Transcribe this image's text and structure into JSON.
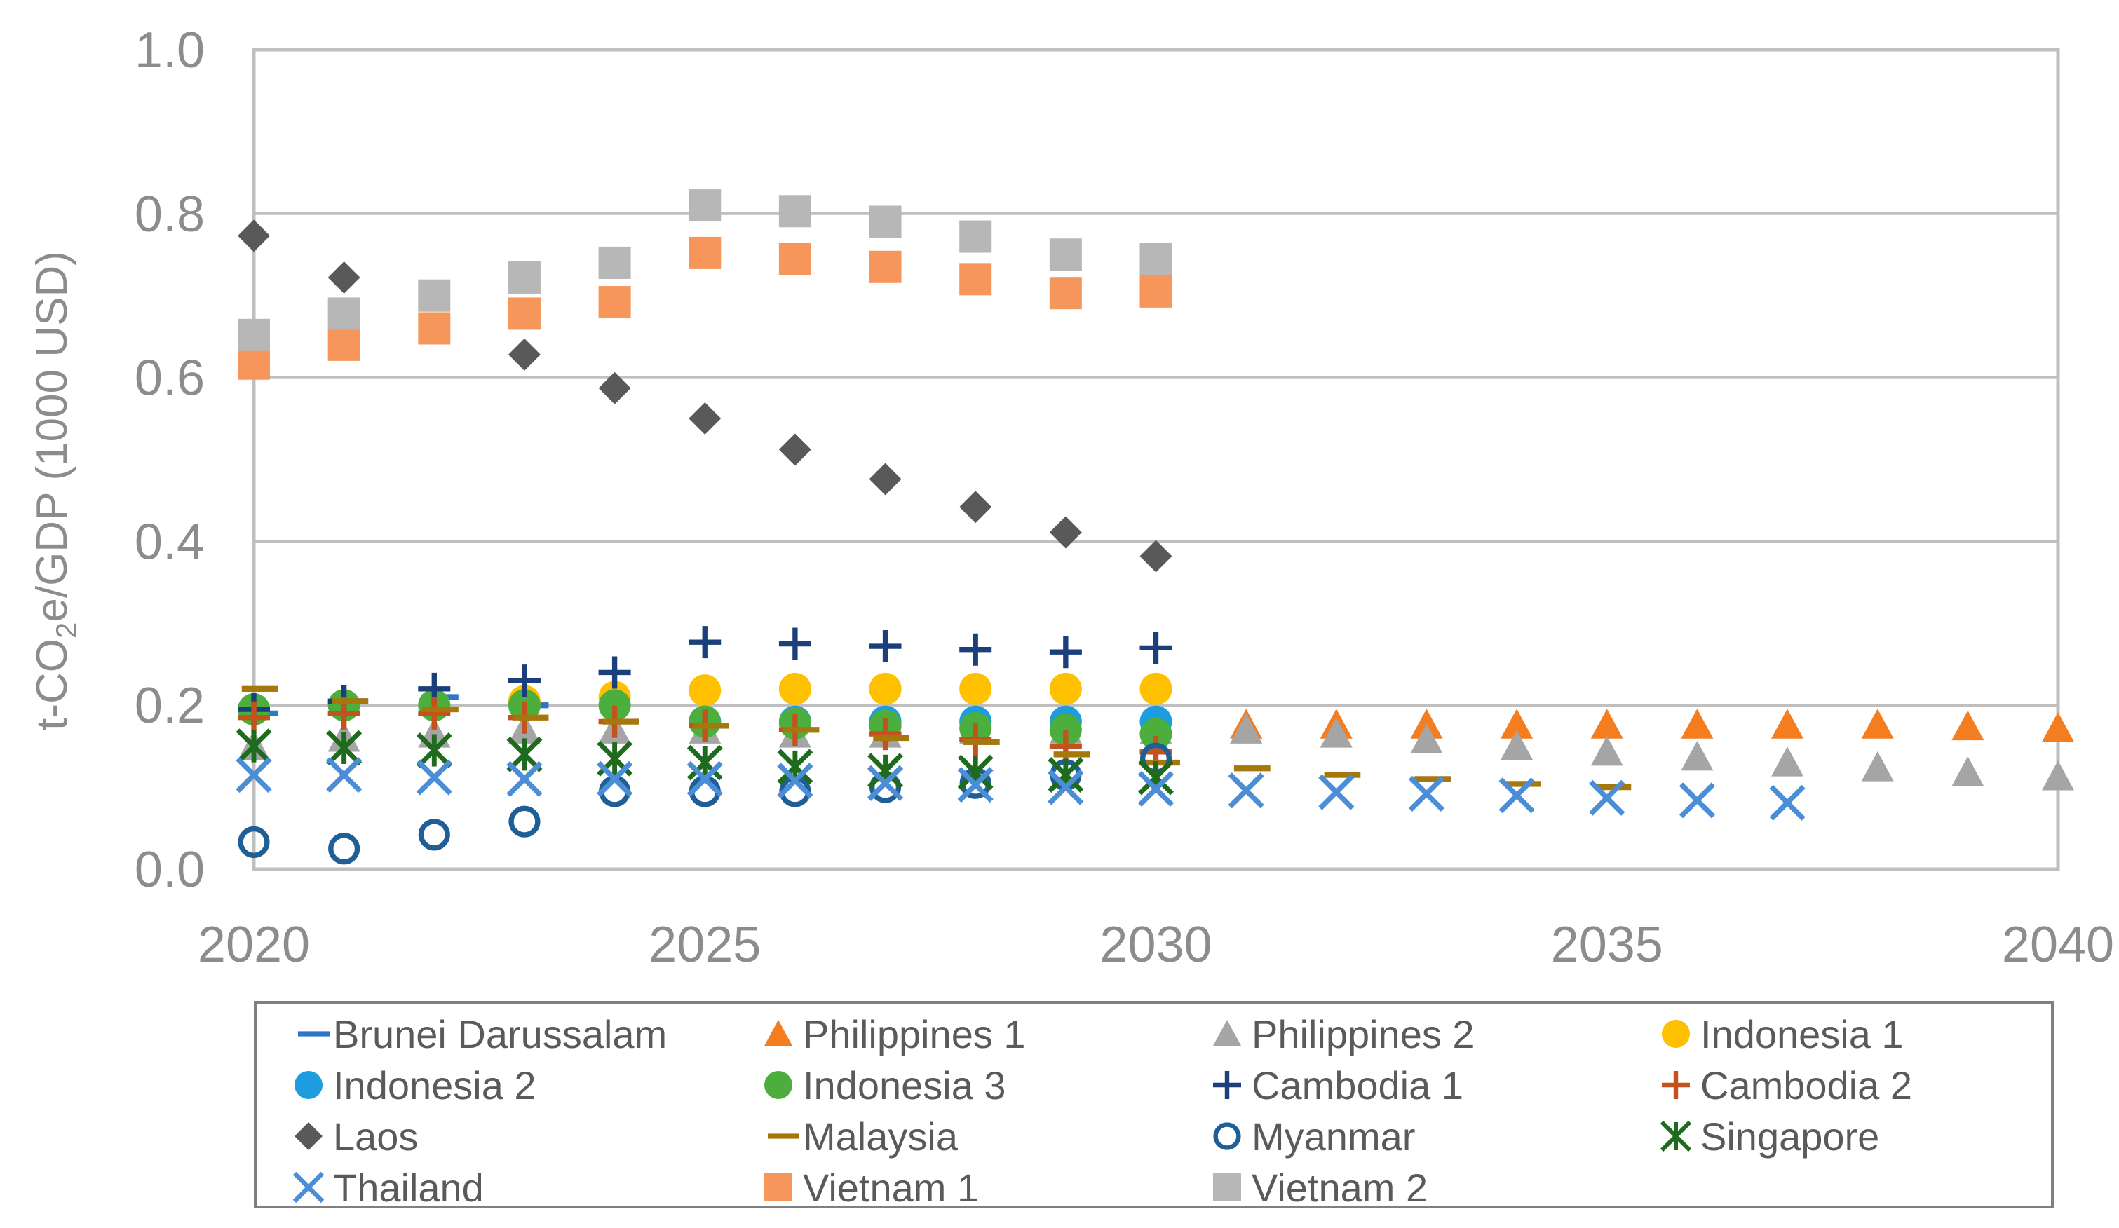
{
  "chart_data": {
    "type": "scatter",
    "ylabel": {
      "prefix": "t-CO",
      "sub": "2",
      "suffix": "e/GDP (1000 USD)"
    },
    "xlim": [
      2020,
      2040
    ],
    "ylim": [
      0.0,
      1.0
    ],
    "x_ticks": [
      "2020",
      "2025",
      "2030",
      "2035",
      "2040"
    ],
    "y_ticks": [
      "0.0",
      "0.2",
      "0.4",
      "0.6",
      "0.8",
      "1.0"
    ],
    "grid": true,
    "legend_position": "bottom",
    "series": [
      {
        "name": "Brunei Darussalam",
        "marker": "dash",
        "color": "#2f75c9",
        "points": [
          [
            2020,
            0.19
          ],
          [
            2021,
            0.205
          ],
          [
            2022,
            0.21
          ],
          [
            2023,
            0.2
          ]
        ]
      },
      {
        "name": "Philippines 1",
        "marker": "triangle",
        "color": "#f47d20",
        "points": [
          [
            2031,
            0.176
          ],
          [
            2032,
            0.176
          ],
          [
            2033,
            0.176
          ],
          [
            2034,
            0.176
          ],
          [
            2035,
            0.176
          ],
          [
            2036,
            0.176
          ],
          [
            2037,
            0.176
          ],
          [
            2038,
            0.176
          ],
          [
            2039,
            0.174
          ],
          [
            2040,
            0.172
          ]
        ]
      },
      {
        "name": "Philippines 2",
        "marker": "triangle",
        "color": "#a5a5a5",
        "points": [
          [
            2020,
            0.15
          ],
          [
            2021,
            0.16
          ],
          [
            2022,
            0.165
          ],
          [
            2023,
            0.17
          ],
          [
            2024,
            0.17
          ],
          [
            2025,
            0.17
          ],
          [
            2026,
            0.165
          ],
          [
            2027,
            0.165
          ],
          [
            2028,
            0.17
          ],
          [
            2029,
            0.17
          ],
          [
            2030,
            0.17
          ],
          [
            2031,
            0.17
          ],
          [
            2032,
            0.165
          ],
          [
            2033,
            0.158
          ],
          [
            2034,
            0.15
          ],
          [
            2035,
            0.143
          ],
          [
            2036,
            0.137
          ],
          [
            2037,
            0.13
          ],
          [
            2038,
            0.124
          ],
          [
            2039,
            0.118
          ],
          [
            2040,
            0.113
          ]
        ]
      },
      {
        "name": "Indonesia 1",
        "marker": "circle",
        "color": "#ffc000",
        "points": [
          [
            2023,
            0.205
          ],
          [
            2024,
            0.21
          ],
          [
            2025,
            0.218
          ],
          [
            2026,
            0.22
          ],
          [
            2027,
            0.22
          ],
          [
            2028,
            0.22
          ],
          [
            2029,
            0.22
          ],
          [
            2030,
            0.22
          ]
        ]
      },
      {
        "name": "Indonesia 2",
        "marker": "circle",
        "color": "#1e9ce0",
        "points": [
          [
            2025,
            0.18
          ],
          [
            2026,
            0.18
          ],
          [
            2027,
            0.18
          ],
          [
            2028,
            0.18
          ],
          [
            2029,
            0.18
          ],
          [
            2030,
            0.18
          ]
        ]
      },
      {
        "name": "Indonesia 3",
        "marker": "circle",
        "color": "#4caf3d",
        "points": [
          [
            2020,
            0.195
          ],
          [
            2021,
            0.2
          ],
          [
            2022,
            0.2
          ],
          [
            2023,
            0.2
          ],
          [
            2024,
            0.2
          ],
          [
            2025,
            0.18
          ],
          [
            2026,
            0.178
          ],
          [
            2027,
            0.175
          ],
          [
            2028,
            0.172
          ],
          [
            2029,
            0.17
          ],
          [
            2030,
            0.165
          ]
        ]
      },
      {
        "name": "Cambodia 1",
        "marker": "plus",
        "color": "#1a3f7a",
        "points": [
          [
            2020,
            0.195
          ],
          [
            2021,
            0.205
          ],
          [
            2022,
            0.22
          ],
          [
            2023,
            0.23
          ],
          [
            2024,
            0.24
          ],
          [
            2025,
            0.277
          ],
          [
            2026,
            0.275
          ],
          [
            2027,
            0.272
          ],
          [
            2028,
            0.268
          ],
          [
            2029,
            0.265
          ],
          [
            2030,
            0.27
          ]
        ]
      },
      {
        "name": "Cambodia 2",
        "marker": "plus",
        "color": "#c4521c",
        "points": [
          [
            2020,
            0.185
          ],
          [
            2021,
            0.19
          ],
          [
            2022,
            0.19
          ],
          [
            2023,
            0.185
          ],
          [
            2024,
            0.18
          ],
          [
            2025,
            0.175
          ],
          [
            2026,
            0.17
          ],
          [
            2027,
            0.165
          ],
          [
            2028,
            0.158
          ],
          [
            2029,
            0.15
          ],
          [
            2030,
            0.143
          ]
        ]
      },
      {
        "name": "Laos",
        "marker": "diamond",
        "color": "#595959",
        "points": [
          [
            2020,
            0.773
          ],
          [
            2021,
            0.722
          ],
          [
            2023,
            0.628
          ],
          [
            2024,
            0.587
          ],
          [
            2025,
            0.55
          ],
          [
            2026,
            0.512
          ],
          [
            2027,
            0.476
          ],
          [
            2028,
            0.442
          ],
          [
            2029,
            0.411
          ],
          [
            2030,
            0.382
          ]
        ]
      },
      {
        "name": "Malaysia",
        "marker": "dash",
        "color": "#a5770d",
        "points": [
          [
            2020,
            0.22
          ],
          [
            2021,
            0.205
          ],
          [
            2022,
            0.195
          ],
          [
            2023,
            0.185
          ],
          [
            2024,
            0.18
          ],
          [
            2025,
            0.175
          ],
          [
            2026,
            0.17
          ],
          [
            2027,
            0.16
          ],
          [
            2028,
            0.155
          ],
          [
            2029,
            0.14
          ],
          [
            2030,
            0.13
          ],
          [
            2031,
            0.123
          ],
          [
            2032,
            0.115
          ],
          [
            2033,
            0.11
          ],
          [
            2034,
            0.104
          ],
          [
            2035,
            0.1
          ]
        ]
      },
      {
        "name": "Myanmar",
        "marker": "open-circle",
        "color": "#1f5f96",
        "points": [
          [
            2020,
            0.033
          ],
          [
            2021,
            0.025
          ],
          [
            2022,
            0.042
          ],
          [
            2023,
            0.058
          ],
          [
            2024,
            0.095
          ],
          [
            2025,
            0.095
          ],
          [
            2026,
            0.095
          ],
          [
            2027,
            0.1
          ],
          [
            2028,
            0.105
          ],
          [
            2029,
            0.115
          ],
          [
            2030,
            0.135
          ]
        ]
      },
      {
        "name": "Singapore",
        "marker": "star",
        "color": "#1e6b1e",
        "points": [
          [
            2020,
            0.15
          ],
          [
            2021,
            0.148
          ],
          [
            2022,
            0.145
          ],
          [
            2023,
            0.14
          ],
          [
            2024,
            0.135
          ],
          [
            2025,
            0.13
          ],
          [
            2026,
            0.125
          ],
          [
            2027,
            0.12
          ],
          [
            2028,
            0.118
          ],
          [
            2029,
            0.115
          ],
          [
            2030,
            0.112
          ]
        ]
      },
      {
        "name": "Thailand",
        "marker": "x",
        "color": "#4b8ed6",
        "points": [
          [
            2020,
            0.115
          ],
          [
            2021,
            0.115
          ],
          [
            2022,
            0.112
          ],
          [
            2023,
            0.11
          ],
          [
            2024,
            0.11
          ],
          [
            2025,
            0.11
          ],
          [
            2026,
            0.108
          ],
          [
            2027,
            0.105
          ],
          [
            2028,
            0.103
          ],
          [
            2029,
            0.1
          ],
          [
            2030,
            0.098
          ],
          [
            2031,
            0.096
          ],
          [
            2032,
            0.094
          ],
          [
            2033,
            0.092
          ],
          [
            2034,
            0.09
          ],
          [
            2035,
            0.087
          ],
          [
            2036,
            0.084
          ],
          [
            2037,
            0.081
          ]
        ]
      },
      {
        "name": "Vietnam 1",
        "marker": "square",
        "color": "#f7965a",
        "points": [
          [
            2020,
            0.617
          ],
          [
            2021,
            0.64
          ],
          [
            2022,
            0.66
          ],
          [
            2023,
            0.678
          ],
          [
            2024,
            0.692
          ],
          [
            2025,
            0.752
          ],
          [
            2026,
            0.745
          ],
          [
            2027,
            0.735
          ],
          [
            2028,
            0.72
          ],
          [
            2029,
            0.703
          ],
          [
            2030,
            0.705
          ]
        ]
      },
      {
        "name": "Vietnam 2",
        "marker": "square",
        "color": "#b7b7b7",
        "points": [
          [
            2020,
            0.652
          ],
          [
            2021,
            0.678
          ],
          [
            2022,
            0.7
          ],
          [
            2023,
            0.722
          ],
          [
            2024,
            0.74
          ],
          [
            2025,
            0.81
          ],
          [
            2026,
            0.803
          ],
          [
            2027,
            0.79
          ],
          [
            2028,
            0.772
          ],
          [
            2029,
            0.75
          ],
          [
            2030,
            0.745
          ]
        ]
      }
    ]
  }
}
